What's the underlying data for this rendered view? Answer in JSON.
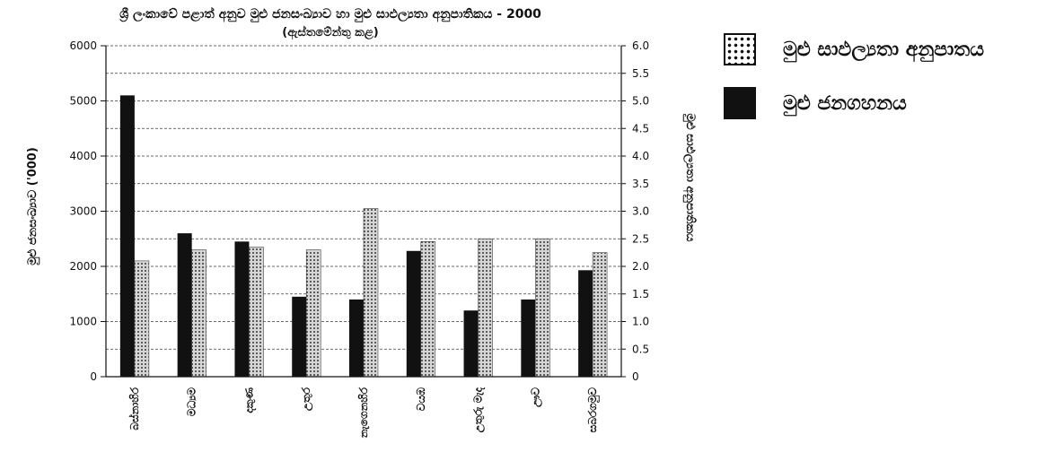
{
  "chart_data": {
    "type": "bar",
    "title": "ශ්‍රී ලංකාවේ පළාත් අනුව මුළු ජනසංඛ්‍යාව හා මුළු සාඵල්‍යතා අනුපාතිකය - 2000",
    "subtitle": "(ඇස්තමේන්තු කළ)",
    "ylabel": "මුළු ජනසංඛ්‍යාව ('000)",
    "ylabel_right": "මුළු සාඵල්‍යතා අනුපාතිකය",
    "ylim": [
      0,
      6000
    ],
    "ylim_right": [
      0,
      6.0
    ],
    "yticks": [
      "0",
      "1000",
      "2000",
      "3000",
      "4000",
      "5000",
      "6000"
    ],
    "yticks_right": [
      "0",
      "0.5",
      "1.0",
      "1.5",
      "2.0",
      "2.5",
      "3.0",
      "3.5",
      "4.0",
      "4.5",
      "5.0",
      "5.5",
      "6.0"
    ],
    "grid": "horizontal dashed",
    "legend_position": "right",
    "categories": [
      "බස්නාහිර",
      "මධ්‍යම",
      "දකුණ",
      "උතුර",
      "නැගෙනහිර",
      "වයඹ",
      "උතුරු මැද",
      "ඌව",
      "සබරගමුව"
    ],
    "series": [
      {
        "name": "මුළු ජනගහනය",
        "axis": "left",
        "pattern": "solid",
        "color": "#111111",
        "values": [
          5100,
          2600,
          2450,
          1450,
          1400,
          2280,
          1200,
          1400,
          1930
        ]
      },
      {
        "name": "මුළු සාඵල්‍යතා අනුපාතය",
        "axis": "right",
        "pattern": "dotted",
        "color": "#8a8a8a",
        "values": [
          2.1,
          2.3,
          2.35,
          2.3,
          3.05,
          2.45,
          2.5,
          2.5,
          2.25
        ]
      }
    ]
  }
}
